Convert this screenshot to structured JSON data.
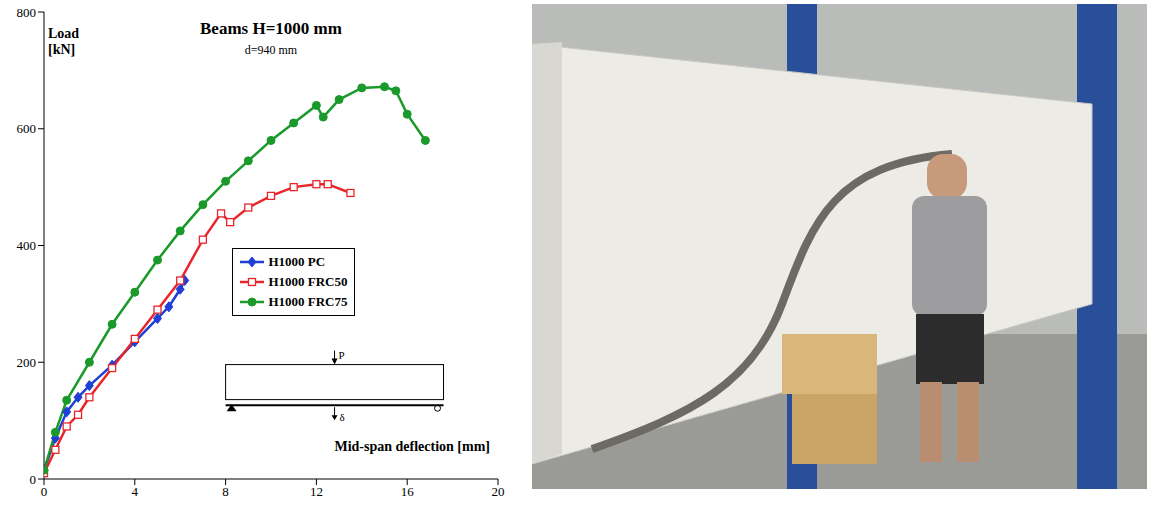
{
  "chart_data": {
    "type": "line",
    "title": "Beams H=1000 mm",
    "subtitle": "d=940 mm",
    "x_label": "Mid-span deflection [mm]",
    "y_label": "Load [kN]",
    "xlim": [
      0,
      20
    ],
    "xticks": [
      0,
      4,
      8,
      12,
      16,
      20
    ],
    "ylim": [
      0,
      800
    ],
    "yticks": [
      0,
      200,
      400,
      600,
      800
    ],
    "grid": false,
    "legend": "right",
    "annotations": [
      "P",
      "δ"
    ],
    "series": [
      {
        "name": "H1000 PC",
        "color": "#1f3fd6",
        "marker": "diamond",
        "x": [
          0,
          0.5,
          1,
          1.5,
          2,
          3,
          4,
          5,
          5.5,
          6,
          6.2
        ],
        "values": [
          15,
          70,
          115,
          140,
          160,
          195,
          235,
          275,
          295,
          325,
          340
        ]
      },
      {
        "name": "H1000 FRC50",
        "color": "#e8262a",
        "marker": "square",
        "x": [
          0,
          0.5,
          1,
          1.5,
          2,
          3,
          4,
          5,
          6,
          7,
          7.8,
          8.2,
          9,
          10,
          11,
          12,
          12.5,
          13.5
        ],
        "values": [
          10,
          50,
          90,
          110,
          140,
          190,
          240,
          290,
          340,
          410,
          455,
          440,
          465,
          485,
          500,
          505,
          505,
          490
        ]
      },
      {
        "name": "H1000 FRC75",
        "color": "#1a9a2a",
        "marker": "circle",
        "x": [
          0,
          0.5,
          1,
          2,
          3,
          4,
          5,
          6,
          7,
          8,
          9,
          10,
          11,
          12,
          12.3,
          13,
          14,
          15,
          15.5,
          16,
          16.8
        ],
        "values": [
          15,
          80,
          135,
          200,
          265,
          320,
          375,
          425,
          470,
          510,
          545,
          580,
          610,
          640,
          620,
          650,
          670,
          672,
          665,
          625,
          580
        ]
      }
    ]
  }
}
